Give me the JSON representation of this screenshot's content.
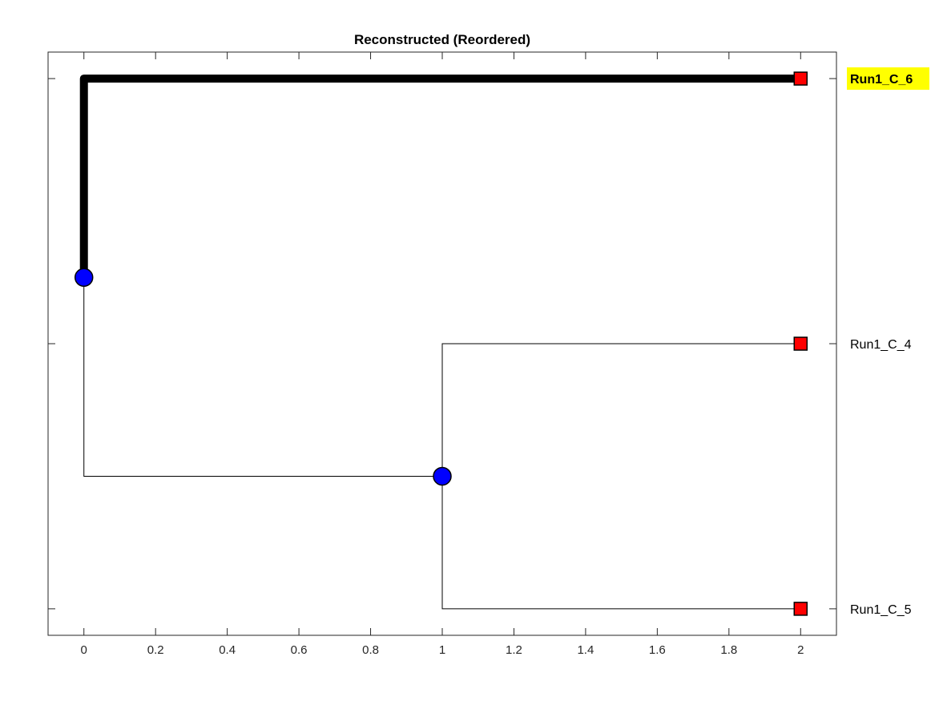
{
  "chart_data": {
    "type": "dendrogram",
    "title": "Reconstructed (Reordered)",
    "xlim": [
      -0.1,
      2.1
    ],
    "xticks": [
      0,
      0.2,
      0.4,
      0.6,
      0.8,
      1,
      1.2,
      1.4,
      1.6,
      1.8,
      2
    ],
    "xtick_labels": [
      "0",
      "0.2",
      "0.4",
      "0.6",
      "0.8",
      "1",
      "1.2",
      "1.4",
      "1.6",
      "1.8",
      "2"
    ],
    "ylim": [
      0.9,
      3.1
    ],
    "yticks": [
      1,
      2,
      3
    ],
    "grid": false,
    "leaves": [
      {
        "label": "Run1_C_6",
        "x": 2,
        "y": 3,
        "highlighted": true
      },
      {
        "label": "Run1_C_4",
        "x": 2,
        "y": 2,
        "highlighted": false
      },
      {
        "label": "Run1_C_5",
        "x": 2,
        "y": 1,
        "highlighted": false
      }
    ],
    "internal_nodes": [
      {
        "x": 0,
        "y": 2.25
      },
      {
        "x": 1,
        "y": 1.5
      }
    ],
    "edges": [
      {
        "points": [
          [
            0,
            2.25
          ],
          [
            0,
            3
          ],
          [
            2,
            3
          ]
        ],
        "highlighted": true
      },
      {
        "points": [
          [
            0,
            2.25
          ],
          [
            0,
            1.5
          ],
          [
            1,
            1.5
          ]
        ],
        "highlighted": false
      },
      {
        "points": [
          [
            1,
            1.5
          ],
          [
            1,
            2
          ],
          [
            2,
            2
          ]
        ],
        "highlighted": false
      },
      {
        "points": [
          [
            1,
            1.5
          ],
          [
            1,
            1
          ],
          [
            2,
            1
          ]
        ],
        "highlighted": false
      }
    ],
    "colors": {
      "leaf_marker": "#ff0000",
      "internal_marker": "#0000ff",
      "edge": "#000000",
      "highlight_background": "#ffff00"
    }
  }
}
